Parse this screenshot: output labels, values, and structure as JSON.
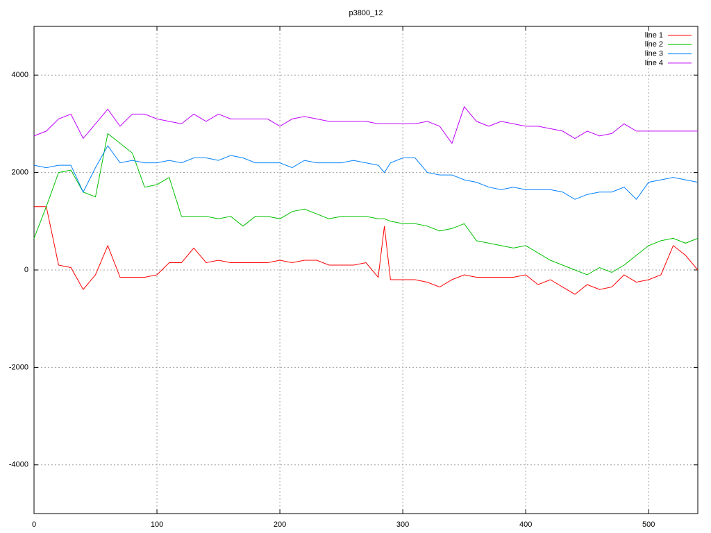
{
  "chart_data": {
    "type": "line",
    "title": "p3800_12",
    "x": [
      0,
      10,
      20,
      30,
      40,
      50,
      60,
      70,
      80,
      90,
      100,
      110,
      120,
      130,
      140,
      150,
      160,
      170,
      180,
      190,
      200,
      210,
      220,
      230,
      240,
      250,
      260,
      270,
      280,
      285,
      290,
      300,
      310,
      320,
      330,
      340,
      350,
      360,
      370,
      380,
      390,
      400,
      410,
      420,
      430,
      440,
      450,
      460,
      470,
      480,
      490,
      500,
      510,
      520,
      530,
      540
    ],
    "series": [
      {
        "name": "line 1",
        "color": "#ff0000",
        "values": [
          1300,
          1300,
          100,
          50,
          -400,
          -100,
          500,
          -150,
          -150,
          -150,
          -100,
          150,
          150,
          450,
          150,
          200,
          150,
          150,
          150,
          150,
          200,
          150,
          200,
          200,
          100,
          100,
          100,
          150,
          -150,
          900,
          -200,
          -200,
          -200,
          -250,
          -350,
          -200,
          -100,
          -150,
          -150,
          -150,
          -150,
          -100,
          -300,
          -200,
          -350,
          -500,
          -300,
          -400,
          -350,
          -100,
          -250,
          -200,
          -100,
          500,
          300,
          0
        ]
      },
      {
        "name": "line 2",
        "color": "#00c000",
        "values": [
          650,
          1300,
          2000,
          2050,
          1600,
          1500,
          2800,
          2600,
          2400,
          1700,
          1750,
          1900,
          1100,
          1100,
          1100,
          1050,
          1100,
          900,
          1100,
          1100,
          1050,
          1200,
          1250,
          1150,
          1050,
          1100,
          1100,
          1100,
          1050,
          1050,
          1000,
          950,
          950,
          900,
          800,
          850,
          950,
          600,
          550,
          500,
          450,
          500,
          350,
          200,
          100,
          0,
          -100,
          50,
          -50,
          100,
          300,
          500,
          600,
          650,
          550,
          650
        ]
      },
      {
        "name": "line 3",
        "color": "#0080ff",
        "values": [
          2150,
          2100,
          2150,
          2150,
          1600,
          2100,
          2550,
          2200,
          2250,
          2200,
          2200,
          2250,
          2200,
          2300,
          2300,
          2250,
          2350,
          2300,
          2200,
          2200,
          2200,
          2100,
          2250,
          2200,
          2200,
          2200,
          2250,
          2200,
          2150,
          2000,
          2200,
          2300,
          2300,
          2000,
          1950,
          1950,
          1850,
          1800,
          1700,
          1650,
          1700,
          1650,
          1650,
          1650,
          1600,
          1450,
          1550,
          1600,
          1600,
          1700,
          1450,
          1800,
          1850,
          1900,
          1850,
          1800
        ]
      },
      {
        "name": "line 4",
        "color": "#c000ff",
        "values": [
          2750,
          2850,
          3100,
          3200,
          2700,
          3000,
          3300,
          2950,
          3200,
          3200,
          3100,
          3050,
          3000,
          3200,
          3050,
          3200,
          3100,
          3100,
          3100,
          3100,
          2950,
          3100,
          3150,
          3100,
          3050,
          3050,
          3050,
          3050,
          3000,
          3000,
          3000,
          3000,
          3000,
          3050,
          2950,
          2600,
          3350,
          3050,
          2950,
          3050,
          3000,
          2950,
          2950,
          2900,
          2850,
          2700,
          2850,
          2750,
          2800,
          3000,
          2850,
          2850,
          2850,
          2850,
          2850,
          2850
        ]
      }
    ],
    "xlim": [
      0,
      540
    ],
    "ylim": [
      -5000,
      5000
    ],
    "xticks": [
      0,
      100,
      200,
      300,
      400,
      500
    ],
    "yticks": [
      -4000,
      -2000,
      0,
      2000,
      4000
    ],
    "grid": true,
    "legend": "top-right"
  }
}
